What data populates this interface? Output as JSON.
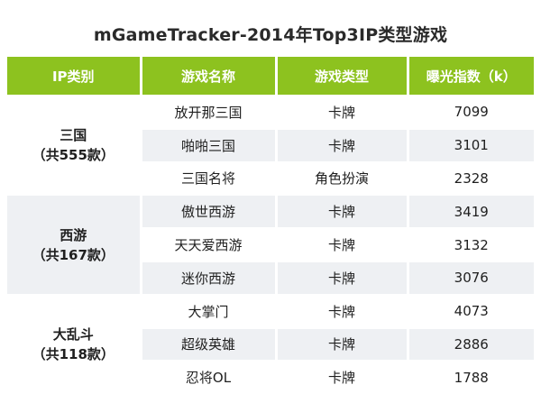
{
  "title": "mGameTracker-2014年Top3IP类型游戏",
  "chart_data": {
    "type": "table",
    "title": "mGameTracker-2014年Top3IP类型游戏",
    "columns": [
      "IP类别",
      "游戏名称",
      "游戏类型",
      "曝光指数（k）"
    ],
    "groups": [
      {
        "category": "三国",
        "count_label": "（共555款）",
        "rows": [
          {
            "name": "放开那三国",
            "type": "卡牌",
            "value": 7099
          },
          {
            "name": "啪啪三国",
            "type": "卡牌",
            "value": 3101
          },
          {
            "name": "三国名将",
            "type": "角色扮演",
            "value": 2328
          }
        ]
      },
      {
        "category": "西游",
        "count_label": "（共167款）",
        "rows": [
          {
            "name": "傲世西游",
            "type": "卡牌",
            "value": 3419
          },
          {
            "name": "天天爱西游",
            "type": "卡牌",
            "value": 3132
          },
          {
            "name": "迷你西游",
            "type": "卡牌",
            "value": 3076
          }
        ]
      },
      {
        "category": "大乱斗",
        "count_label": "（共118款）",
        "rows": [
          {
            "name": "大掌门",
            "type": "卡牌",
            "value": 4073
          },
          {
            "name": "超级英雄",
            "type": "卡牌",
            "value": 2886
          },
          {
            "name": "忍将OL",
            "type": "卡牌",
            "value": 1788
          }
        ]
      }
    ]
  },
  "colors": {
    "header_bg": "#8dc21f",
    "header_text": "#ffffff",
    "row_alt": "#eef0f3"
  }
}
